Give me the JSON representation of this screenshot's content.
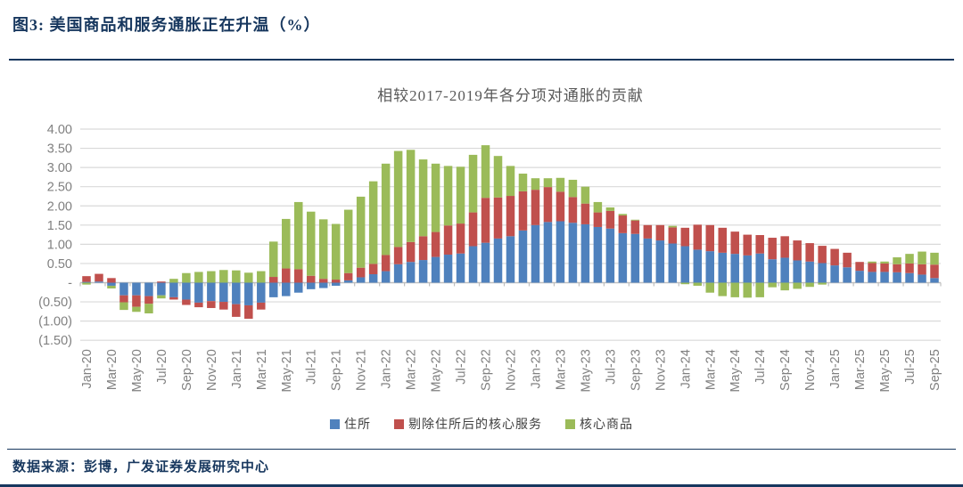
{
  "header": {
    "title": "图3:  美国商品和服务通胀正在升温（%）"
  },
  "footer": {
    "source": "数据来源：彭博，广发证券发展研究中心"
  },
  "colors": {
    "accent_navy": "#17375E",
    "grid_line": "#D9D9D9",
    "zero_axis": "#BFBFBF",
    "axis_text": "#808080",
    "title_text": "#595959"
  },
  "chart_data": {
    "type": "bar",
    "stacked": true,
    "title": "相较2017-2019年各分项对通胀的贡献",
    "xlabel": "",
    "ylabel": "",
    "ylim": [
      -1.5,
      4.0
    ],
    "ytick_step": 0.5,
    "y_tick_labels": [
      "4.00",
      "3.50",
      "3.00",
      "2.50",
      "2.00",
      "1.50",
      "1.00",
      "0.50",
      "-",
      "(0.50)",
      "(1.00)",
      "(1.50)"
    ],
    "grid": true,
    "legend_position": "bottom",
    "x_label_every": 2,
    "categories": [
      "Jan-20",
      "Feb-20",
      "Mar-20",
      "Apr-20",
      "May-20",
      "Jun-20",
      "Jul-20",
      "Aug-20",
      "Sep-20",
      "Oct-20",
      "Nov-20",
      "Dec-20",
      "Jan-21",
      "Feb-21",
      "Mar-21",
      "Apr-21",
      "May-21",
      "Jun-21",
      "Jul-21",
      "Aug-21",
      "Sep-21",
      "Oct-21",
      "Nov-21",
      "Dec-21",
      "Jan-22",
      "Feb-22",
      "Mar-22",
      "Apr-22",
      "May-22",
      "Jun-22",
      "Jul-22",
      "Aug-22",
      "Sep-22",
      "Oct-22",
      "Nov-22",
      "Dec-22",
      "Jan-23",
      "Feb-23",
      "Mar-23",
      "Apr-23",
      "May-23",
      "Jun-23",
      "Jul-23",
      "Aug-23",
      "Sep-23",
      "Oct-23",
      "Nov-23",
      "Dec-23",
      "Jan-24",
      "Feb-24",
      "Mar-24",
      "Apr-24",
      "May-24",
      "Jun-24",
      "Jul-24",
      "Aug-24",
      "Sep-24",
      "Oct-24",
      "Nov-24",
      "Dec-24",
      "Jan-25",
      "Feb-25",
      "Mar-25",
      "Apr-25",
      "May-25",
      "Jun-25",
      "Jul-25",
      "Aug-25",
      "Sep-25"
    ],
    "series": [
      {
        "name": "住所",
        "color": "#4F81BD",
        "values": [
          0.02,
          0.03,
          -0.08,
          -0.33,
          -0.33,
          -0.35,
          -0.33,
          -0.38,
          -0.44,
          -0.52,
          -0.48,
          -0.5,
          -0.56,
          -0.59,
          -0.52,
          -0.38,
          -0.35,
          -0.26,
          -0.17,
          -0.14,
          -0.08,
          0.06,
          0.14,
          0.22,
          0.3,
          0.48,
          0.54,
          0.59,
          0.67,
          0.73,
          0.76,
          0.95,
          1.04,
          1.15,
          1.21,
          1.36,
          1.5,
          1.58,
          1.6,
          1.56,
          1.52,
          1.45,
          1.41,
          1.29,
          1.27,
          1.15,
          1.1,
          1.02,
          0.95,
          0.86,
          0.82,
          0.78,
          0.75,
          0.71,
          0.76,
          0.61,
          0.65,
          0.58,
          0.55,
          0.51,
          0.45,
          0.4,
          0.31,
          0.28,
          0.28,
          0.27,
          0.25,
          0.21,
          0.12
        ]
      },
      {
        "name": "剔除住所后的核心服务",
        "color": "#C0504D",
        "values": [
          0.15,
          0.2,
          0.12,
          -0.18,
          -0.3,
          -0.2,
          0.03,
          -0.06,
          -0.14,
          -0.12,
          -0.18,
          -0.2,
          -0.33,
          -0.35,
          -0.18,
          0.15,
          0.37,
          0.35,
          0.18,
          0.1,
          0.08,
          0.19,
          0.25,
          0.27,
          0.42,
          0.45,
          0.52,
          0.62,
          0.65,
          0.76,
          0.78,
          0.88,
          1.17,
          1.07,
          1.05,
          1.02,
          0.92,
          0.91,
          0.77,
          0.67,
          0.54,
          0.38,
          0.46,
          0.46,
          0.35,
          0.35,
          0.4,
          0.42,
          0.48,
          0.65,
          0.68,
          0.65,
          0.58,
          0.54,
          0.48,
          0.56,
          0.56,
          0.52,
          0.48,
          0.45,
          0.43,
          0.38,
          0.23,
          0.23,
          0.22,
          0.21,
          0.25,
          0.27,
          0.35
        ]
      },
      {
        "name": "核心商品",
        "color": "#9BBB59",
        "values": [
          -0.05,
          0.0,
          -0.07,
          -0.2,
          -0.13,
          -0.25,
          -0.08,
          0.1,
          0.25,
          0.28,
          0.3,
          0.33,
          0.32,
          0.26,
          0.3,
          0.92,
          1.29,
          1.75,
          1.67,
          1.55,
          1.45,
          1.65,
          1.85,
          2.15,
          2.38,
          2.5,
          2.4,
          2.0,
          1.78,
          1.55,
          1.48,
          1.5,
          1.37,
          1.08,
          0.78,
          0.46,
          0.3,
          0.23,
          0.36,
          0.45,
          0.44,
          0.27,
          0.09,
          0.04,
          0.02,
          0.0,
          0.0,
          0.04,
          -0.04,
          -0.08,
          -0.26,
          -0.35,
          -0.38,
          -0.39,
          -0.38,
          -0.12,
          -0.2,
          -0.16,
          -0.11,
          -0.05,
          0.0,
          0.0,
          0.0,
          0.04,
          0.05,
          0.18,
          0.25,
          0.33,
          0.31
        ]
      }
    ]
  }
}
